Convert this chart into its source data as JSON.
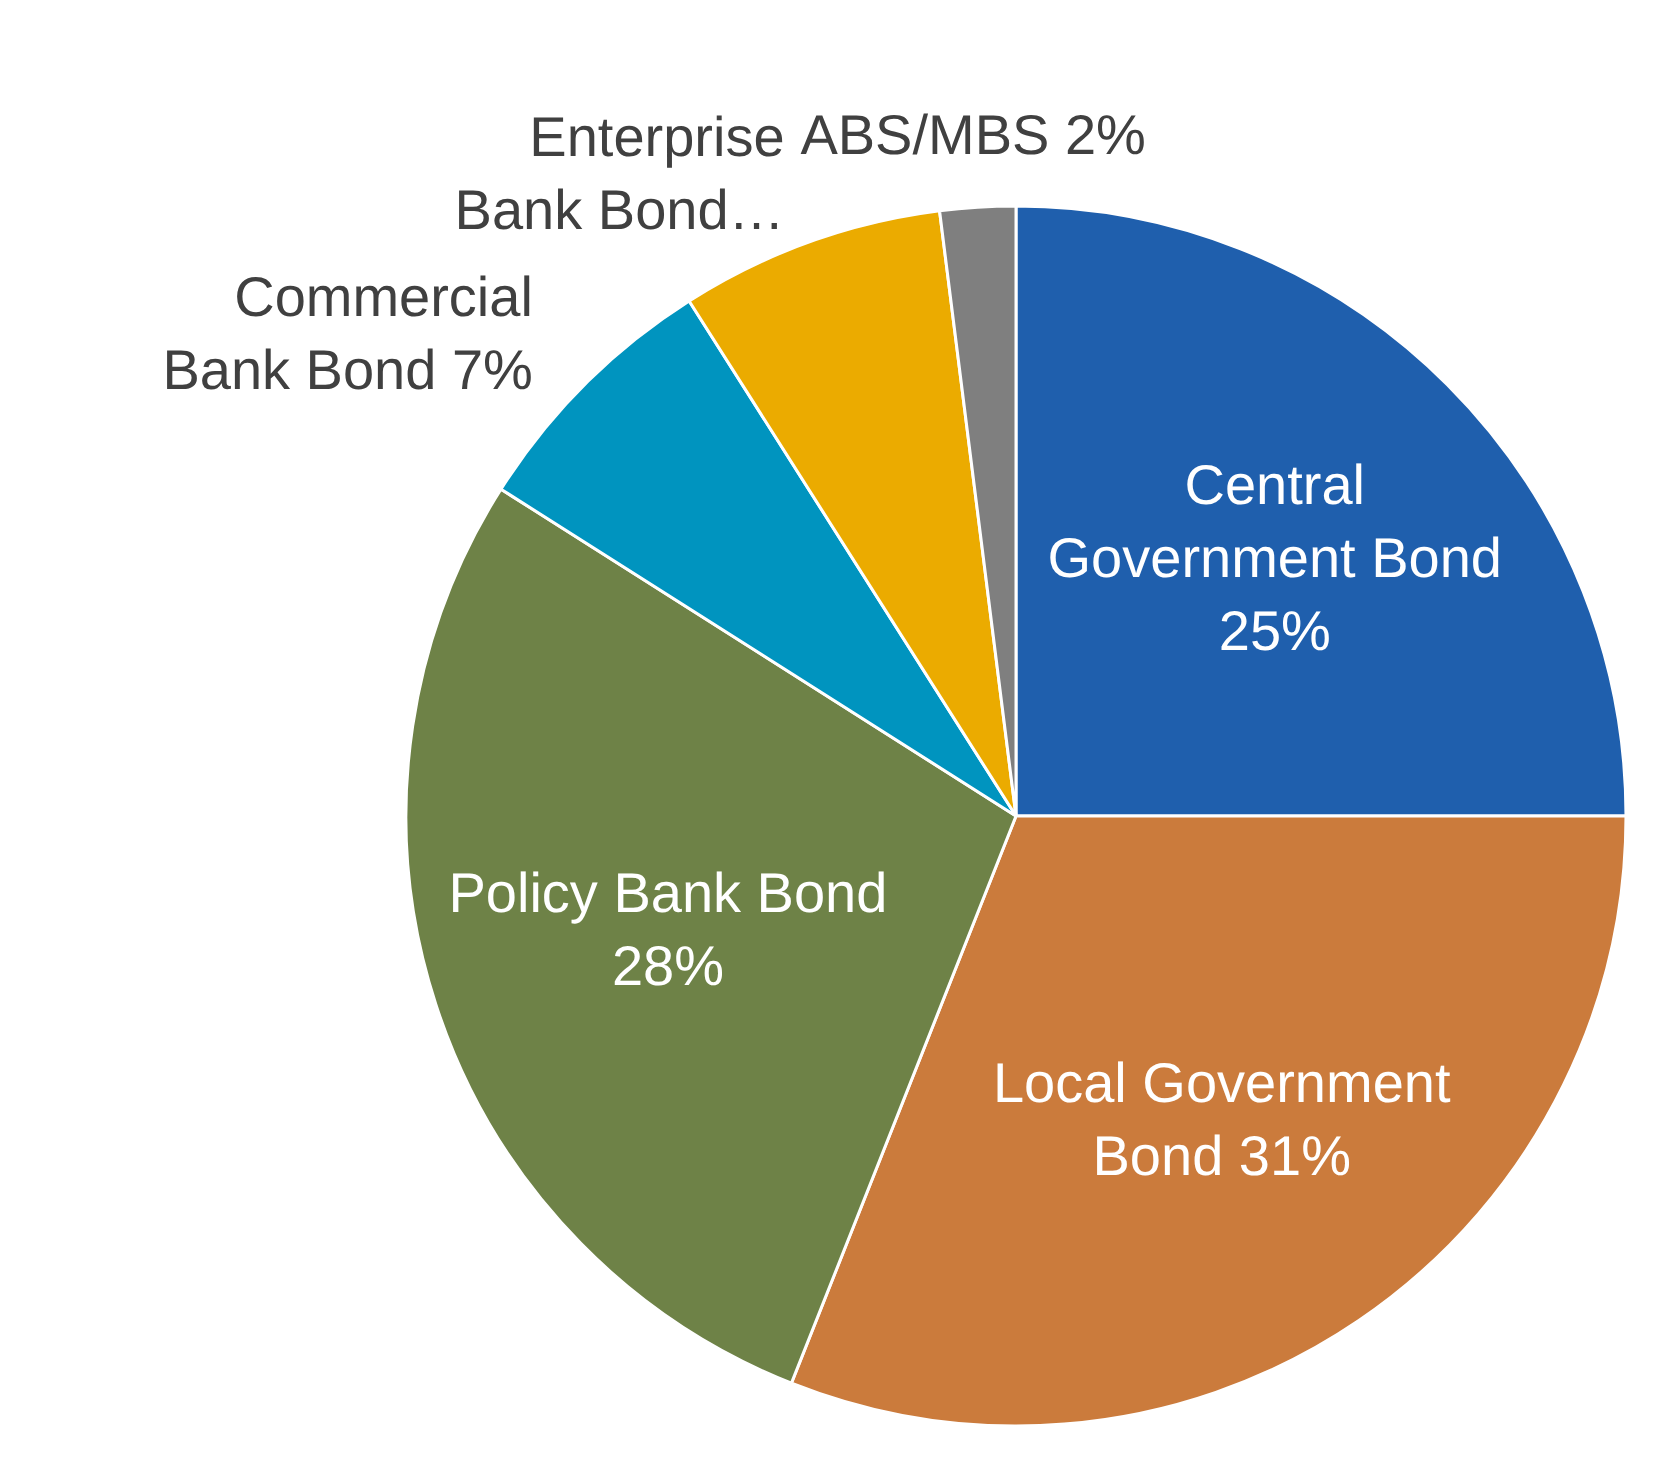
{
  "chart_data": {
    "type": "pie",
    "categories": [
      "Central Government Bond",
      "Local Government Bond",
      "Policy Bank Bond",
      "Commercial Bank Bond",
      "Enterprise Bank Bond…",
      "ABS/MBS"
    ],
    "values": [
      25,
      31,
      28,
      7,
      7,
      2
    ],
    "value_labels": [
      "25%",
      "31%",
      "28%",
      "7%",
      null,
      "2%"
    ],
    "colors": [
      "#1f5fad",
      "#cb7b3c",
      "#6e8247",
      "#0094bf",
      "#ebab00",
      "#7f7f7f"
    ]
  }
}
